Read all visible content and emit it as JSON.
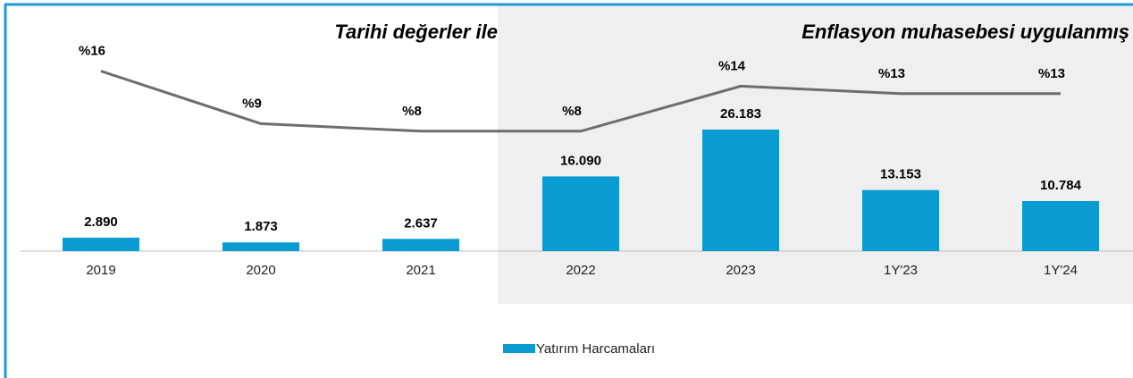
{
  "chart_data": {
    "type": "bar",
    "annotations": [
      "Tarihi değerler ile",
      "Enflasyon muhasebesi uygulanmış"
    ],
    "categories": [
      "2019",
      "2020",
      "2021",
      "2022",
      "2023",
      "1Y'23",
      "1Y'24"
    ],
    "series": [
      {
        "name": "Yatırım Harcamaları",
        "color": "#0a9bd0",
        "type": "bar",
        "values": [
          2890,
          1873,
          2637,
          16090,
          26183,
          13153,
          10784
        ],
        "value_labels": [
          "2.890",
          "1.873",
          "2.637",
          "16.090",
          "26.183",
          "13.153",
          "10.784"
        ]
      },
      {
        "color": "#6d6d6d",
        "type": "line",
        "values": [
          16,
          9,
          8,
          8,
          14,
          13,
          13
        ],
        "value_labels": [
          "%16",
          "%9",
          "%8",
          "%8",
          "%14",
          "%13",
          "%13"
        ]
      }
    ],
    "legend": "bottom"
  }
}
